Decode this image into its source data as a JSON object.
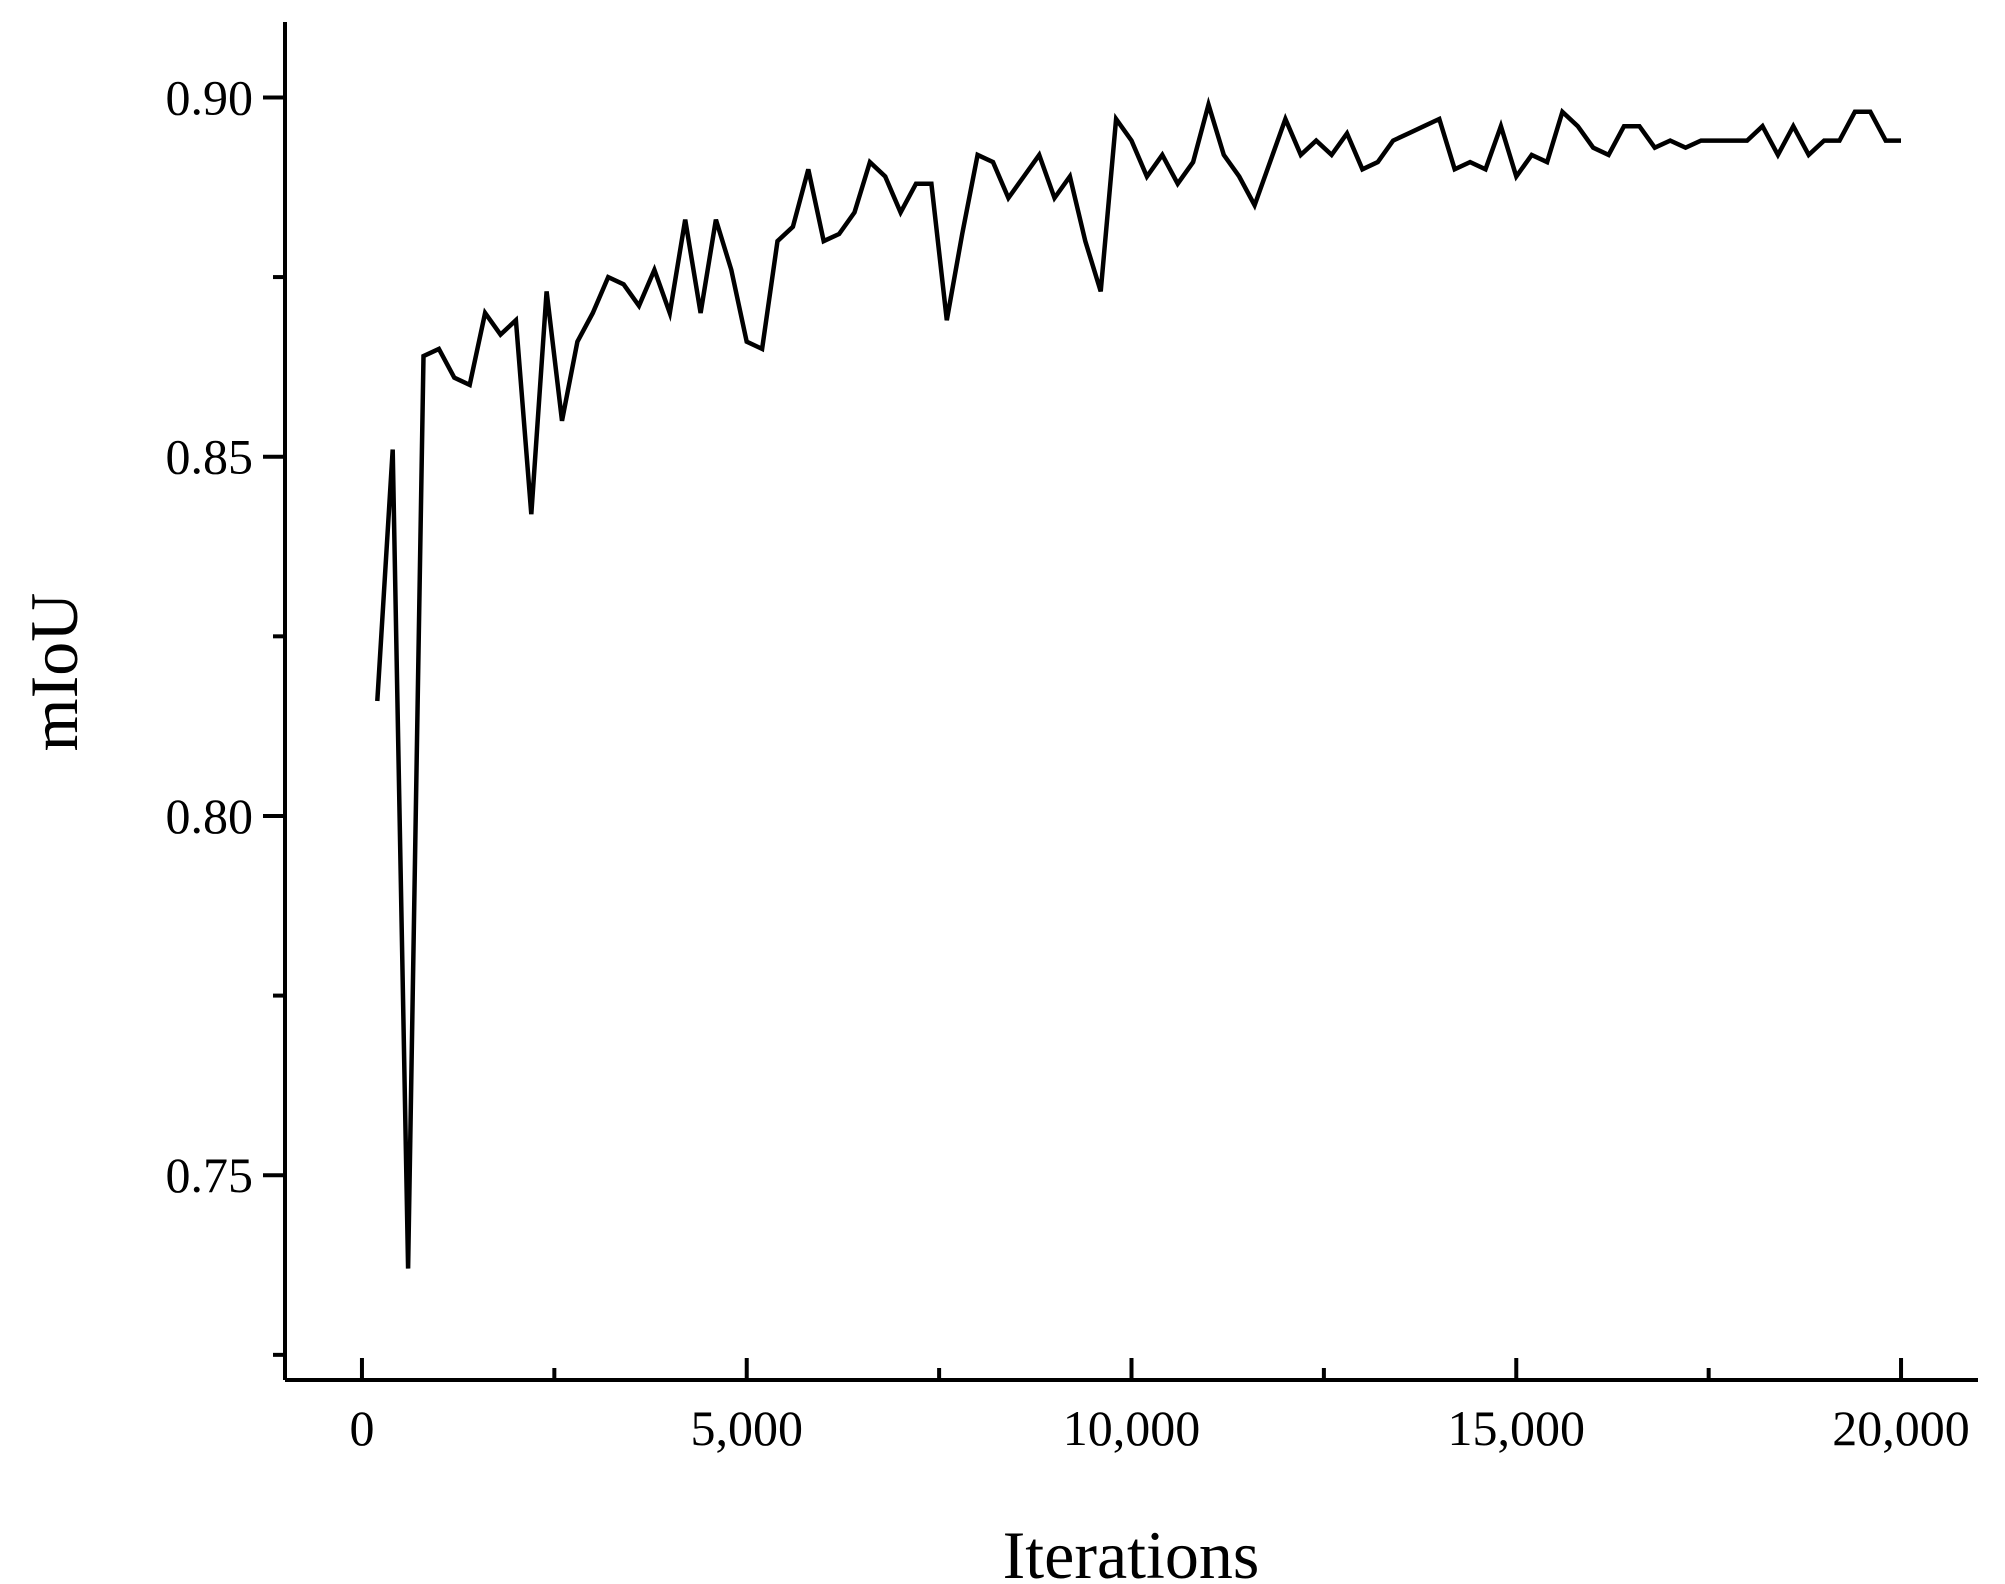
{
  "chart_data": {
    "type": "line",
    "title": "",
    "xlabel": "Iterations",
    "ylabel": "mIoU",
    "xlim": [
      -1000,
      21000
    ],
    "ylim": [
      0.7215,
      0.9105
    ],
    "x_ticks": [
      0,
      5000,
      10000,
      15000,
      20000
    ],
    "x_tick_labels": [
      "0",
      "5,000",
      "10,000",
      "15,000",
      "20,000"
    ],
    "x_minor_ticks": [
      2500,
      7500,
      12500,
      17500
    ],
    "y_ticks": [
      0.75,
      0.8,
      0.85,
      0.9
    ],
    "y_tick_labels": [
      "0.75",
      "0.80",
      "0.85",
      "0.90"
    ],
    "y_minor_ticks": [
      0.725,
      0.775,
      0.825,
      0.875
    ],
    "grid": false,
    "legend": "none",
    "line_color": "#000000",
    "series": [
      {
        "x": [
          200,
          400,
          600,
          800,
          1000,
          1200,
          1400,
          1600,
          1800,
          2000,
          2200,
          2400,
          2600,
          2800,
          3000,
          3200,
          3400,
          3600,
          3800,
          4000,
          4200,
          4400,
          4600,
          4800,
          5000,
          5200,
          5400,
          5600,
          5800,
          6000,
          6200,
          6400,
          6600,
          6800,
          7000,
          7200,
          7400,
          7600,
          7800,
          8000,
          8200,
          8400,
          8600,
          8800,
          9000,
          9200,
          9400,
          9600,
          9800,
          10000,
          10200,
          10400,
          10600,
          10800,
          11000,
          11200,
          11400,
          11600,
          11800,
          12000,
          12200,
          12400,
          12600,
          12800,
          13000,
          13200,
          13400,
          13600,
          13800,
          14000,
          14200,
          14400,
          14600,
          14800,
          15000,
          15200,
          15400,
          15600,
          15800,
          16000,
          16200,
          16400,
          16600,
          16800,
          17000,
          17200,
          17400,
          17600,
          17800,
          18000,
          18200,
          18400,
          18600,
          18800,
          19000,
          19200,
          19400,
          19600,
          19800,
          20000
        ],
        "y": [
          0.816,
          0.851,
          0.737,
          0.864,
          0.865,
          0.861,
          0.86,
          0.87,
          0.867,
          0.869,
          0.842,
          0.873,
          0.855,
          0.866,
          0.87,
          0.875,
          0.874,
          0.871,
          0.876,
          0.87,
          0.883,
          0.87,
          0.883,
          0.876,
          0.866,
          0.865,
          0.88,
          0.882,
          0.89,
          0.88,
          0.881,
          0.884,
          0.891,
          0.889,
          0.884,
          0.888,
          0.888,
          0.869,
          0.881,
          0.892,
          0.891,
          0.886,
          0.889,
          0.892,
          0.886,
          0.889,
          0.88,
          0.873,
          0.897,
          0.894,
          0.889,
          0.892,
          0.888,
          0.891,
          0.899,
          0.892,
          0.889,
          0.885,
          0.891,
          0.897,
          0.892,
          0.894,
          0.892,
          0.895,
          0.89,
          0.891,
          0.894,
          0.895,
          0.896,
          0.897,
          0.89,
          0.891,
          0.89,
          0.896,
          0.889,
          0.892,
          0.891,
          0.898,
          0.896,
          0.893,
          0.892,
          0.896,
          0.896,
          0.893,
          0.894,
          0.893,
          0.894,
          0.894,
          0.894,
          0.894,
          0.896,
          0.892,
          0.896,
          0.892,
          0.894,
          0.894,
          0.898,
          0.898,
          0.894,
          0.894
        ]
      }
    ]
  }
}
